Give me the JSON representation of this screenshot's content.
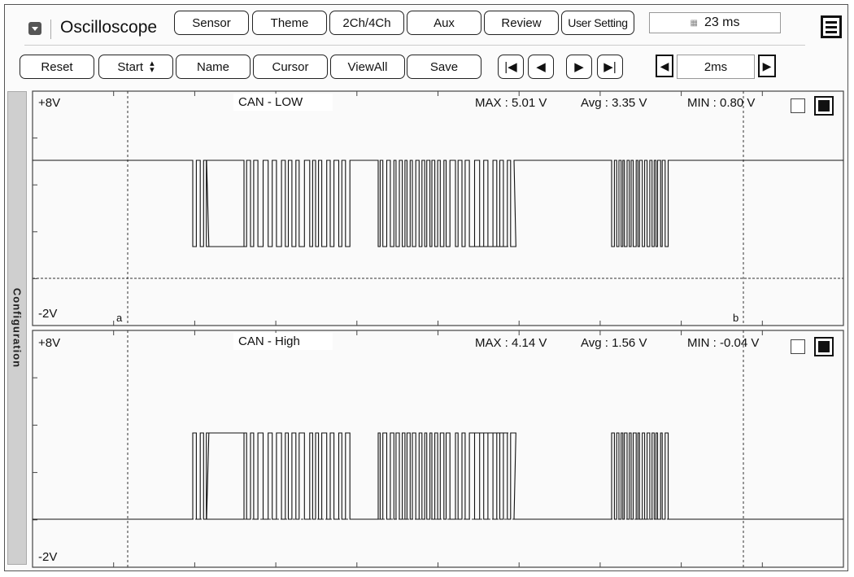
{
  "app": {
    "title": "Oscilloscope"
  },
  "toolbar1": {
    "sensor": "Sensor",
    "theme": "Theme",
    "channels": "2Ch/4Ch",
    "aux": "Aux",
    "review": "Review",
    "user_setting": "User Setting",
    "status": "23 ms"
  },
  "toolbar2": {
    "reset": "Reset",
    "start": "Start",
    "name": "Name",
    "cursor": "Cursor",
    "viewall": "ViewAll",
    "save": "Save",
    "time_div": "2ms"
  },
  "side": {
    "label": "Configuration"
  },
  "channels": [
    {
      "name": "CAN - LOW",
      "top": "+8V",
      "bottom": "-2V",
      "max": "MAX : 5.01 V",
      "avg": "Avg : 3.35 V",
      "min": "MIN : 0.80 V",
      "cursor_a": "a",
      "cursor_b": "b"
    },
    {
      "name": "CAN - High",
      "top": "+8V",
      "bottom": "-2V",
      "max": "MAX : 4.14 V",
      "avg": "Avg : 1.56 V",
      "min": "MIN : -0.04 V"
    }
  ],
  "icons": {
    "menu": "dropdown-icon",
    "doc": "document-icon",
    "first": "skip-first-icon",
    "prev": "prev-icon",
    "next": "next-icon",
    "last": "skip-last-icon"
  }
}
